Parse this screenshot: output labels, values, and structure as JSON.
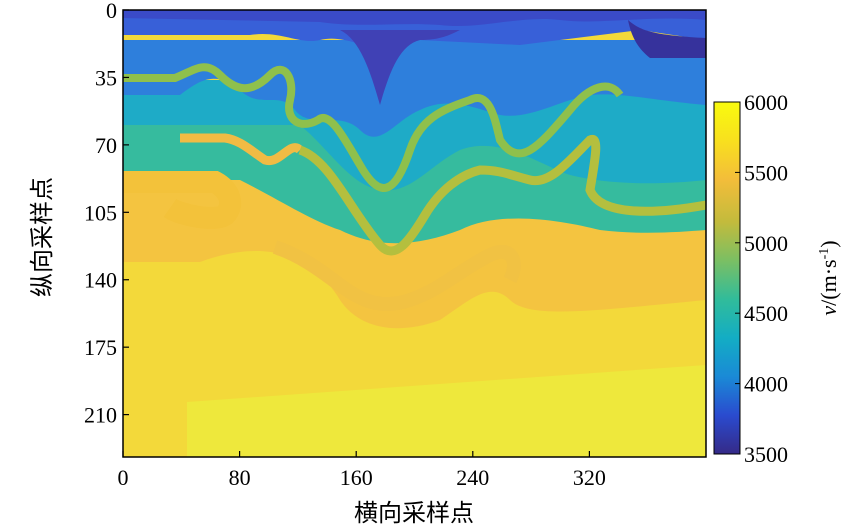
{
  "chart_data": {
    "type": "heatmap",
    "xlabel": "横向采样点",
    "ylabel": "纵向采样点",
    "x_ticks": [
      0,
      80,
      160,
      240,
      320
    ],
    "y_ticks": [
      0,
      35,
      70,
      105,
      140,
      175,
      210
    ],
    "xlim": [
      0,
      400
    ],
    "ylim": [
      232,
      0
    ],
    "colorbar": {
      "label": "v/(m·s⁻¹)",
      "label_var": "v",
      "label_unit": "/(m·s",
      "label_sup": "-1",
      "label_close": ")",
      "ticks": [
        3500,
        4000,
        4500,
        5000,
        5500,
        6000
      ],
      "range": [
        3500,
        6000
      ],
      "colormap": [
        "#352a87",
        "#2a4bcf",
        "#1a8ad6",
        "#13adc4",
        "#31bc9a",
        "#7bbf63",
        "#c3bb3c",
        "#f3bd3a",
        "#f8e01e",
        "#f9fb0e"
      ]
    },
    "layers": [
      {
        "name": "top-dark",
        "velocity": 3700
      },
      {
        "name": "upper-blue",
        "velocity": 4000
      },
      {
        "name": "mid-blue",
        "velocity": 4300
      },
      {
        "name": "cyan",
        "velocity": 4650
      },
      {
        "name": "teal-green",
        "velocity": 4950
      },
      {
        "name": "orange",
        "velocity": 5600
      },
      {
        "name": "deep-yellow",
        "velocity": 5800
      },
      {
        "name": "bottom-bright",
        "velocity": 5950
      }
    ]
  }
}
